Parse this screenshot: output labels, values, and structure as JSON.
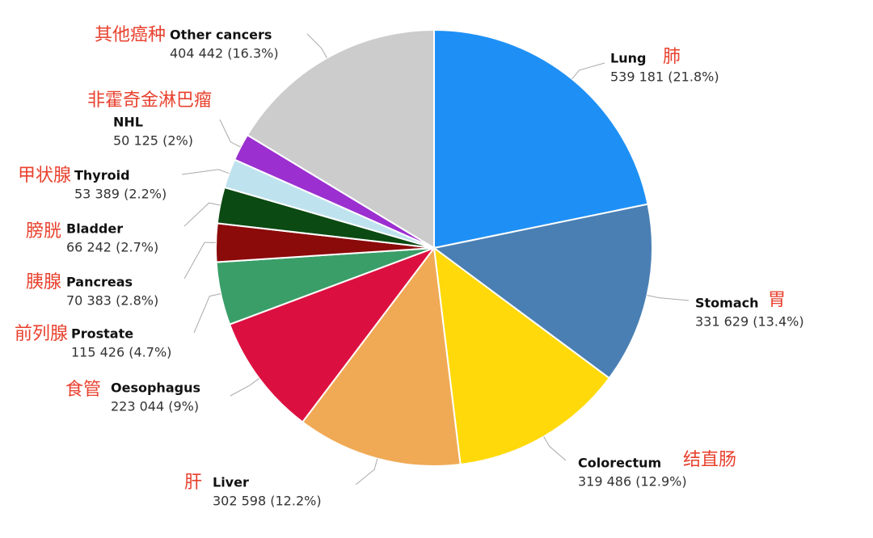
{
  "chart_data": {
    "type": "pie",
    "categories": [
      "Lung",
      "Stomach",
      "Colorectum",
      "Liver",
      "Oesophagus",
      "Prostate",
      "Pancreas",
      "Bladder",
      "Thyroid",
      "NHL",
      "Other cancers"
    ],
    "categories_cn": [
      "肺",
      "胃",
      "结直肠",
      "肝",
      "食管",
      "前列腺",
      "胰腺",
      "膀胱",
      "甲状腺",
      "非霍奇金淋巴瘤",
      "其他癌种"
    ],
    "values": [
      539181,
      331629,
      319486,
      302598,
      223044,
      115426,
      70383,
      66242,
      53389,
      50125,
      404442
    ],
    "value_labels": [
      "539 181 (21.8%)",
      "331 629 (13.4%)",
      "319 486 (12.9%)",
      "302 598 (12.2%)",
      "223 044 (9%)",
      "115 426 (4.7%)",
      "70 383 (2.8%)",
      "66 242 (2.7%)",
      "53 389 (2.2%)",
      "50 125 (2%)",
      "404 442 (16.3%)"
    ],
    "colors": [
      "#1e90f5",
      "#4a7fb3",
      "#ffd90a",
      "#f0aa55",
      "#dc1040",
      "#3a9e68",
      "#8b0a0a",
      "#0b4a12",
      "#bfe3ee",
      "#9b2fd0",
      "#cccccc"
    ]
  }
}
